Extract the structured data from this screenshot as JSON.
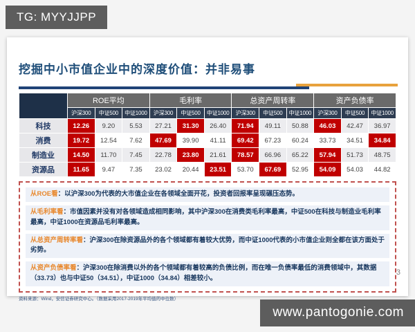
{
  "badges": {
    "tg": "TG: MYYJJPP",
    "site": "www.pantogonie.com"
  },
  "slide": {
    "title": "挖掘中小市值企业中的深度价值：并非易事",
    "page_number": "3",
    "source_note": "资料来源：Wind，安信证券研究中心。（数据采用2017-2019年平均值的中位数）",
    "table": {
      "corner_label": "",
      "groups": [
        "ROE平均",
        "毛利率",
        "总资产周转率",
        "资产负债率"
      ],
      "sub_columns": [
        "沪深300",
        "中证500",
        "中证1000"
      ],
      "rows": [
        {
          "label": "科技",
          "values": [
            "12.26",
            "9.20",
            "5.53",
            "27.21",
            "31.30",
            "26.40",
            "71.94",
            "49.11",
            "50.88",
            "46.03",
            "42.47",
            "36.97"
          ],
          "highlight": [
            0,
            4,
            6,
            9
          ]
        },
        {
          "label": "消费",
          "values": [
            "19.72",
            "12.54",
            "7.62",
            "47.69",
            "39.90",
            "41.11",
            "69.42",
            "67.23",
            "60.24",
            "33.73",
            "34.51",
            "34.84"
          ],
          "highlight": [
            0,
            3,
            6,
            11
          ]
        },
        {
          "label": "制造业",
          "values": [
            "14.50",
            "11.70",
            "7.45",
            "22.78",
            "23.80",
            "21.61",
            "78.57",
            "66.96",
            "65.22",
            "57.94",
            "51.73",
            "48.75"
          ],
          "highlight": [
            0,
            4,
            6,
            9
          ]
        },
        {
          "label": "资源品",
          "values": [
            "11.65",
            "9.47",
            "7.35",
            "23.02",
            "20.44",
            "23.51",
            "53.70",
            "67.69",
            "52.95",
            "54.09",
            "54.03",
            "44.82"
          ],
          "highlight": [
            0,
            5,
            7,
            9
          ]
        }
      ]
    },
    "bullets": [
      {
        "label": "从ROE看",
        "text": "：以沪深300为代表的大市值企业在各领域全面开花，投资者回报率呈现碾压态势。"
      },
      {
        "label": "从毛利率看",
        "text": "：市值因素并没有对各领域造成相同影响，其中沪深300在消费类毛利率最高，中证500在科技与制造业毛利率最高，中证1000在资源品毛利率最高。"
      },
      {
        "label": "从总资产周转率看",
        "text": "：沪深300在除资源品外的各个领域都有着较大优势，而中证1000代表的小市值企业则全都在该方面处于劣势。"
      },
      {
        "label": "从资产负债率看",
        "text": "：沪深300在除消费以外的各个领域都有着较高的负债比例，而在唯一负债率最低的消费领域中，其数据（33.73）也与中证50（34.51），中证1000（34.84）相差较小。"
      }
    ],
    "colors": {
      "accent_blue": "#1F4E79",
      "accent_orange": "#E8A23D",
      "highlight_red": "#C00000",
      "header_gray": "#6A6A6A",
      "header_navy": "#2E3D52"
    }
  }
}
